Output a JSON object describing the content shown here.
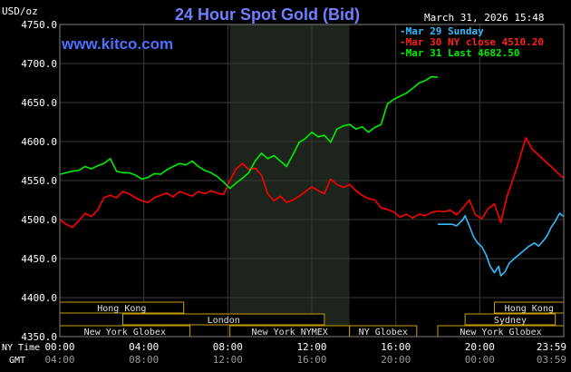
{
  "chart_data": {
    "type": "line",
    "title": "24 Hour Spot Gold (Bid)",
    "ylabel": "USD/oz",
    "ylim": [
      4350,
      4750
    ],
    "yticks": [
      "4750.0",
      "4700.0",
      "4650.0",
      "4600.0",
      "4550.0",
      "4500.0",
      "4450.0",
      "4400.0",
      "4350.0"
    ],
    "grid": true,
    "legend_position": "top-right",
    "x_row_labels": {
      "ny": "NY Time",
      "gmt": "GMT"
    },
    "x_ticks_ny": [
      "00:00",
      "04:00",
      "08:00",
      "12:00",
      "16:00",
      "20:00",
      "23:59"
    ],
    "x_ticks_gmt": [
      "04:00",
      "08:00",
      "12:00",
      "16:00",
      "20:00",
      "00:00",
      "03:59"
    ],
    "x_range_hours": [
      0,
      24
    ],
    "series": [
      {
        "name": "Mar 29 Sunday",
        "color": "#33bbff",
        "x": [
          18.0,
          18.7,
          18.9,
          19.2,
          19.3,
          19.5,
          19.7,
          19.9,
          20.1,
          20.3,
          20.5,
          20.7,
          20.9,
          21.0,
          21.2,
          21.4,
          21.6,
          22.0,
          22.3,
          22.6,
          22.8,
          23.0,
          23.2,
          23.4,
          23.6,
          23.8,
          24.0
        ],
        "y": [
          4494,
          4494,
          4492,
          4500,
          4505,
          4492,
          4478,
          4470,
          4465,
          4455,
          4440,
          4432,
          4440,
          4428,
          4433,
          4444,
          4449,
          4458,
          4465,
          4470,
          4466,
          4472,
          4479,
          4490,
          4498,
          4508,
          4504
        ]
      },
      {
        "name": "Mar 30 NY close 4510.20",
        "color": "#ff0000",
        "x": [
          0.0,
          0.3,
          0.6,
          0.9,
          1.2,
          1.5,
          1.8,
          2.1,
          2.4,
          2.7,
          3.0,
          3.3,
          3.6,
          3.9,
          4.2,
          4.5,
          4.8,
          5.1,
          5.4,
          5.7,
          6.0,
          6.3,
          6.6,
          6.9,
          7.2,
          7.5,
          7.8,
          8.1,
          8.4,
          8.7,
          9.0,
          9.3,
          9.6,
          9.9,
          10.2,
          10.5,
          10.8,
          11.1,
          11.4,
          11.7,
          12.0,
          12.3,
          12.6,
          12.9,
          13.2,
          13.5,
          13.8,
          14.1,
          14.4,
          14.7,
          15.0,
          15.3,
          15.6,
          15.9,
          16.2,
          16.5,
          16.8,
          17.1,
          17.4,
          17.7,
          18.0,
          18.3,
          18.6,
          18.9,
          19.2,
          19.5,
          19.8,
          20.1,
          20.4,
          20.7,
          21.0,
          21.3,
          21.6,
          21.9,
          22.2,
          22.5,
          22.8,
          23.1,
          23.4,
          23.7,
          24.0
        ],
        "y": [
          4500,
          4494,
          4490,
          4498,
          4508,
          4504,
          4512,
          4528,
          4531,
          4528,
          4536,
          4533,
          4528,
          4524,
          4522,
          4528,
          4531,
          4534,
          4529,
          4536,
          4533,
          4530,
          4536,
          4533,
          4537,
          4534,
          4532,
          4550,
          4565,
          4572,
          4564,
          4566,
          4557,
          4533,
          4524,
          4530,
          4522,
          4525,
          4530,
          4536,
          4542,
          4537,
          4533,
          4552,
          4545,
          4541,
          4545,
          4537,
          4531,
          4527,
          4525,
          4515,
          4513,
          4510,
          4503,
          4507,
          4502,
          4507,
          4505,
          4509,
          4511,
          4510,
          4512,
          4506,
          4515,
          4525,
          4506,
          4501,
          4514,
          4520,
          4496,
          4530,
          4553,
          4578,
          4605,
          4590,
          4583,
          4575,
          4568,
          4560,
          4553
        ]
      },
      {
        "name": "Mar 31 Last 4682.50",
        "color": "#00ee00",
        "x": [
          0.0,
          0.3,
          0.6,
          0.9,
          1.2,
          1.5,
          1.8,
          2.1,
          2.4,
          2.7,
          3.0,
          3.3,
          3.6,
          3.9,
          4.2,
          4.5,
          4.8,
          5.1,
          5.4,
          5.7,
          6.0,
          6.3,
          6.6,
          6.9,
          7.2,
          7.5,
          7.8,
          8.1,
          8.4,
          8.7,
          9.0,
          9.3,
          9.6,
          9.9,
          10.2,
          10.5,
          10.8,
          11.1,
          11.4,
          11.7,
          12.0,
          12.3,
          12.6,
          12.9,
          13.2,
          13.5,
          13.8,
          14.1,
          14.4,
          14.7,
          15.0,
          15.3,
          15.6,
          15.9,
          16.2,
          16.5,
          16.8,
          17.1,
          17.4,
          17.7,
          18.0
        ],
        "y": [
          4558,
          4560,
          4562,
          4563,
          4568,
          4565,
          4569,
          4572,
          4578,
          4562,
          4560,
          4560,
          4557,
          4552,
          4554,
          4559,
          4558,
          4564,
          4568,
          4572,
          4570,
          4575,
          4568,
          4563,
          4560,
          4555,
          4548,
          4540,
          4547,
          4553,
          4560,
          4575,
          4585,
          4578,
          4582,
          4575,
          4568,
          4583,
          4599,
          4604,
          4612,
          4606,
          4608,
          4599,
          4616,
          4620,
          4622,
          4616,
          4619,
          4612,
          4618,
          4622,
          4648,
          4654,
          4658,
          4662,
          4668,
          4675,
          4678,
          4683,
          4682.5
        ]
      }
    ],
    "annotations": {
      "timestamp": "March 31, 2026 15:48",
      "watermark": "www.kitco.com",
      "highlight_band_hours": [
        8.1,
        13.8
      ],
      "sessions": [
        {
          "label": "Hong Kong",
          "start": 0.0,
          "end": 5.9,
          "row": 0
        },
        {
          "label": "London",
          "start": 3.0,
          "end": 12.6,
          "row": 1
        },
        {
          "label": "New York Globex",
          "start": 0.0,
          "end": 6.2,
          "row": 2
        },
        {
          "label": "New York NYMEX",
          "start": 8.1,
          "end": 13.8,
          "row": 2
        },
        {
          "label": "NY Globex",
          "start": 13.8,
          "end": 17.0,
          "row": 2
        },
        {
          "label": "Hong Kong",
          "start": 20.7,
          "end": 24.0,
          "row": 0
        },
        {
          "label": "Sydney",
          "start": 19.3,
          "end": 23.6,
          "row": 1
        },
        {
          "label": "New York Globex",
          "start": 18.0,
          "end": 24.0,
          "row": 2
        }
      ]
    }
  }
}
